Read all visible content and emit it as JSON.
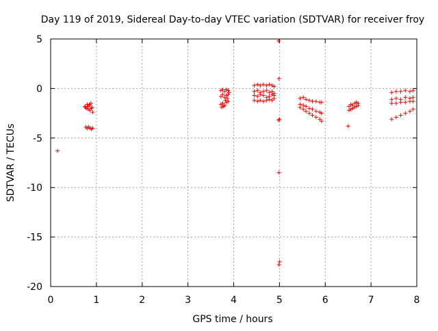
{
  "chart_data": {
    "type": "scatter",
    "title": "Day 119 of 2019, Sidereal Day-to-day VTEC variation (SDTVAR) for receiver froy",
    "xlabel": "GPS time / hours",
    "ylabel": "SDTVAR / TECUs",
    "xlim": [
      0,
      8
    ],
    "ylim": [
      -20,
      5
    ],
    "xticks": [
      0,
      1,
      2,
      3,
      4,
      5,
      6,
      7,
      8
    ],
    "xtick_labels": [
      "0",
      "1",
      "2",
      "3",
      "4",
      "5",
      "6",
      "7",
      "8"
    ],
    "yticks": [
      -20,
      -15,
      -10,
      -5,
      0,
      5
    ],
    "ytick_labels": [
      "-20",
      "-15",
      "-10",
      "-5",
      "0",
      "5"
    ],
    "grid": true,
    "marker": "+",
    "color": "#ff0000",
    "series": [
      {
        "name": "SDTVAR",
        "points": [
          [
            0.15,
            -6.3
          ],
          [
            0.75,
            -1.8
          ],
          [
            0.78,
            -2.0
          ],
          [
            0.8,
            -1.6
          ],
          [
            0.82,
            -2.1
          ],
          [
            0.84,
            -1.7
          ],
          [
            0.86,
            -2.2
          ],
          [
            0.88,
            -1.5
          ],
          [
            0.9,
            -1.9
          ],
          [
            0.92,
            -2.4
          ],
          [
            0.76,
            -1.9
          ],
          [
            0.81,
            -1.8
          ],
          [
            0.85,
            -1.6
          ],
          [
            0.89,
            -2.0
          ],
          [
            0.77,
            -3.9
          ],
          [
            0.8,
            -4.0
          ],
          [
            0.83,
            -3.9
          ],
          [
            0.86,
            -4.0
          ],
          [
            0.89,
            -4.1
          ],
          [
            0.92,
            -4.0
          ],
          [
            3.72,
            -0.2
          ],
          [
            3.76,
            -0.1
          ],
          [
            3.8,
            -0.3
          ],
          [
            3.84,
            -0.1
          ],
          [
            3.88,
            -0.2
          ],
          [
            3.72,
            -0.8
          ],
          [
            3.76,
            -0.6
          ],
          [
            3.8,
            -0.9
          ],
          [
            3.84,
            -0.7
          ],
          [
            3.88,
            -0.6
          ],
          [
            3.72,
            -1.6
          ],
          [
            3.76,
            -1.5
          ],
          [
            3.8,
            -1.7
          ],
          [
            3.84,
            -1.4
          ],
          [
            3.88,
            -1.3
          ],
          [
            3.74,
            -1.9
          ],
          [
            3.78,
            -1.8
          ],
          [
            3.82,
            -1.2
          ],
          [
            3.86,
            -1.0
          ],
          [
            3.9,
            -0.4
          ],
          [
            4.45,
            0.3
          ],
          [
            4.52,
            0.4
          ],
          [
            4.58,
            0.3
          ],
          [
            4.65,
            0.4
          ],
          [
            4.72,
            0.3
          ],
          [
            4.78,
            0.4
          ],
          [
            4.84,
            0.3
          ],
          [
            4.88,
            0.2
          ],
          [
            4.45,
            -0.3
          ],
          [
            4.52,
            -0.2
          ],
          [
            4.58,
            -0.4
          ],
          [
            4.65,
            -0.3
          ],
          [
            4.72,
            -0.2
          ],
          [
            4.78,
            -0.4
          ],
          [
            4.84,
            -0.3
          ],
          [
            4.88,
            -0.5
          ],
          [
            4.45,
            -0.7
          ],
          [
            4.52,
            -0.8
          ],
          [
            4.58,
            -0.6
          ],
          [
            4.65,
            -0.7
          ],
          [
            4.72,
            -0.9
          ],
          [
            4.78,
            -0.8
          ],
          [
            4.84,
            -0.6
          ],
          [
            4.88,
            -0.7
          ],
          [
            4.45,
            -1.2
          ],
          [
            4.52,
            -1.3
          ],
          [
            4.58,
            -1.2
          ],
          [
            4.65,
            -1.3
          ],
          [
            4.72,
            -1.2
          ],
          [
            4.78,
            -1.1
          ],
          [
            4.84,
            -1.2
          ],
          [
            4.88,
            -1.0
          ],
          [
            4.98,
            4.8
          ],
          [
            4.99,
            1.0
          ],
          [
            4.98,
            -3.2
          ],
          [
            5.0,
            -3.1
          ],
          [
            4.99,
            -8.5
          ],
          [
            5.0,
            -17.5
          ],
          [
            4.99,
            -17.8
          ],
          [
            5.45,
            -1.0
          ],
          [
            5.52,
            -0.9
          ],
          [
            5.58,
            -1.1
          ],
          [
            5.65,
            -1.2
          ],
          [
            5.72,
            -1.3
          ],
          [
            5.8,
            -1.3
          ],
          [
            5.88,
            -1.4
          ],
          [
            5.92,
            -1.4
          ],
          [
            5.45,
            -1.6
          ],
          [
            5.52,
            -1.7
          ],
          [
            5.58,
            -1.8
          ],
          [
            5.65,
            -2.0
          ],
          [
            5.72,
            -2.1
          ],
          [
            5.8,
            -2.3
          ],
          [
            5.88,
            -2.4
          ],
          [
            5.92,
            -2.5
          ],
          [
            5.45,
            -1.9
          ],
          [
            5.52,
            -2.1
          ],
          [
            5.58,
            -2.3
          ],
          [
            5.65,
            -2.5
          ],
          [
            5.72,
            -2.7
          ],
          [
            5.8,
            -2.9
          ],
          [
            5.88,
            -3.1
          ],
          [
            5.92,
            -3.3
          ],
          [
            6.5,
            -3.8
          ],
          [
            6.52,
            -1.8
          ],
          [
            6.56,
            -1.6
          ],
          [
            6.6,
            -1.7
          ],
          [
            6.64,
            -1.5
          ],
          [
            6.68,
            -1.4
          ],
          [
            6.72,
            -1.5
          ],
          [
            6.52,
            -2.2
          ],
          [
            6.56,
            -2.1
          ],
          [
            6.6,
            -2.0
          ],
          [
            6.64,
            -1.9
          ],
          [
            6.68,
            -1.8
          ],
          [
            6.72,
            -1.7
          ],
          [
            7.45,
            -0.4
          ],
          [
            7.55,
            -0.3
          ],
          [
            7.65,
            -0.3
          ],
          [
            7.75,
            -0.2
          ],
          [
            7.85,
            -0.3
          ],
          [
            7.92,
            -0.2
          ],
          [
            7.45,
            -1.1
          ],
          [
            7.55,
            -1.0
          ],
          [
            7.65,
            -1.1
          ],
          [
            7.75,
            -0.9
          ],
          [
            7.85,
            -1.0
          ],
          [
            7.92,
            -0.9
          ],
          [
            7.45,
            -1.5
          ],
          [
            7.55,
            -1.5
          ],
          [
            7.65,
            -1.4
          ],
          [
            7.75,
            -1.4
          ],
          [
            7.85,
            -1.3
          ],
          [
            7.92,
            -1.3
          ],
          [
            7.45,
            -3.1
          ],
          [
            7.55,
            -2.9
          ],
          [
            7.65,
            -2.7
          ],
          [
            7.75,
            -2.5
          ],
          [
            7.85,
            -2.3
          ],
          [
            7.92,
            -2.1
          ]
        ]
      }
    ]
  }
}
